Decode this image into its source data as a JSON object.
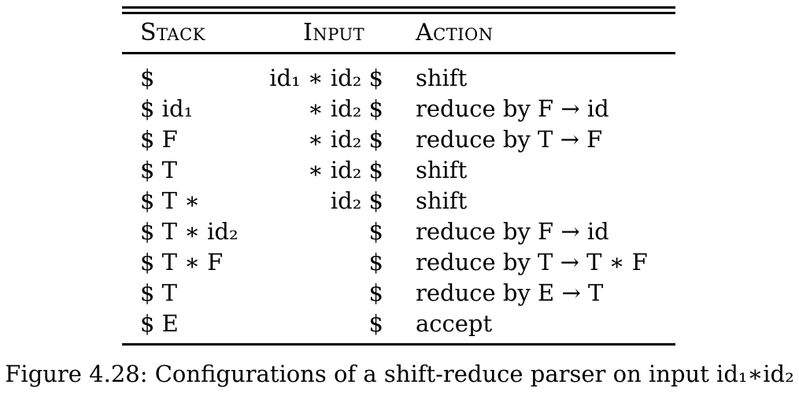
{
  "table": {
    "headers": {
      "stack": "Stack",
      "input": "Input",
      "action": "Action"
    },
    "rows": [
      {
        "stack": "$",
        "input": "id₁ ∗ id₂ $",
        "action": "shift"
      },
      {
        "stack": "$ id₁",
        "input": "∗ id₂ $",
        "action": "reduce by F → id"
      },
      {
        "stack": "$ F",
        "input": "∗ id₂ $",
        "action": "reduce by T → F"
      },
      {
        "stack": "$ T",
        "input": "∗ id₂ $",
        "action": "shift"
      },
      {
        "stack": "$ T ∗",
        "input": "id₂ $",
        "action": "shift"
      },
      {
        "stack": "$ T ∗ id₂",
        "input": "$",
        "action": "reduce by F → id"
      },
      {
        "stack": "$ T ∗ F",
        "input": "$",
        "action": "reduce by T → T ∗ F"
      },
      {
        "stack": "$ T",
        "input": "$",
        "action": "reduce by E → T"
      },
      {
        "stack": "$ E",
        "input": "$",
        "action": "accept"
      }
    ]
  },
  "caption": "Figure 4.28: Configurations of a shift-reduce parser on input id₁∗id₂"
}
